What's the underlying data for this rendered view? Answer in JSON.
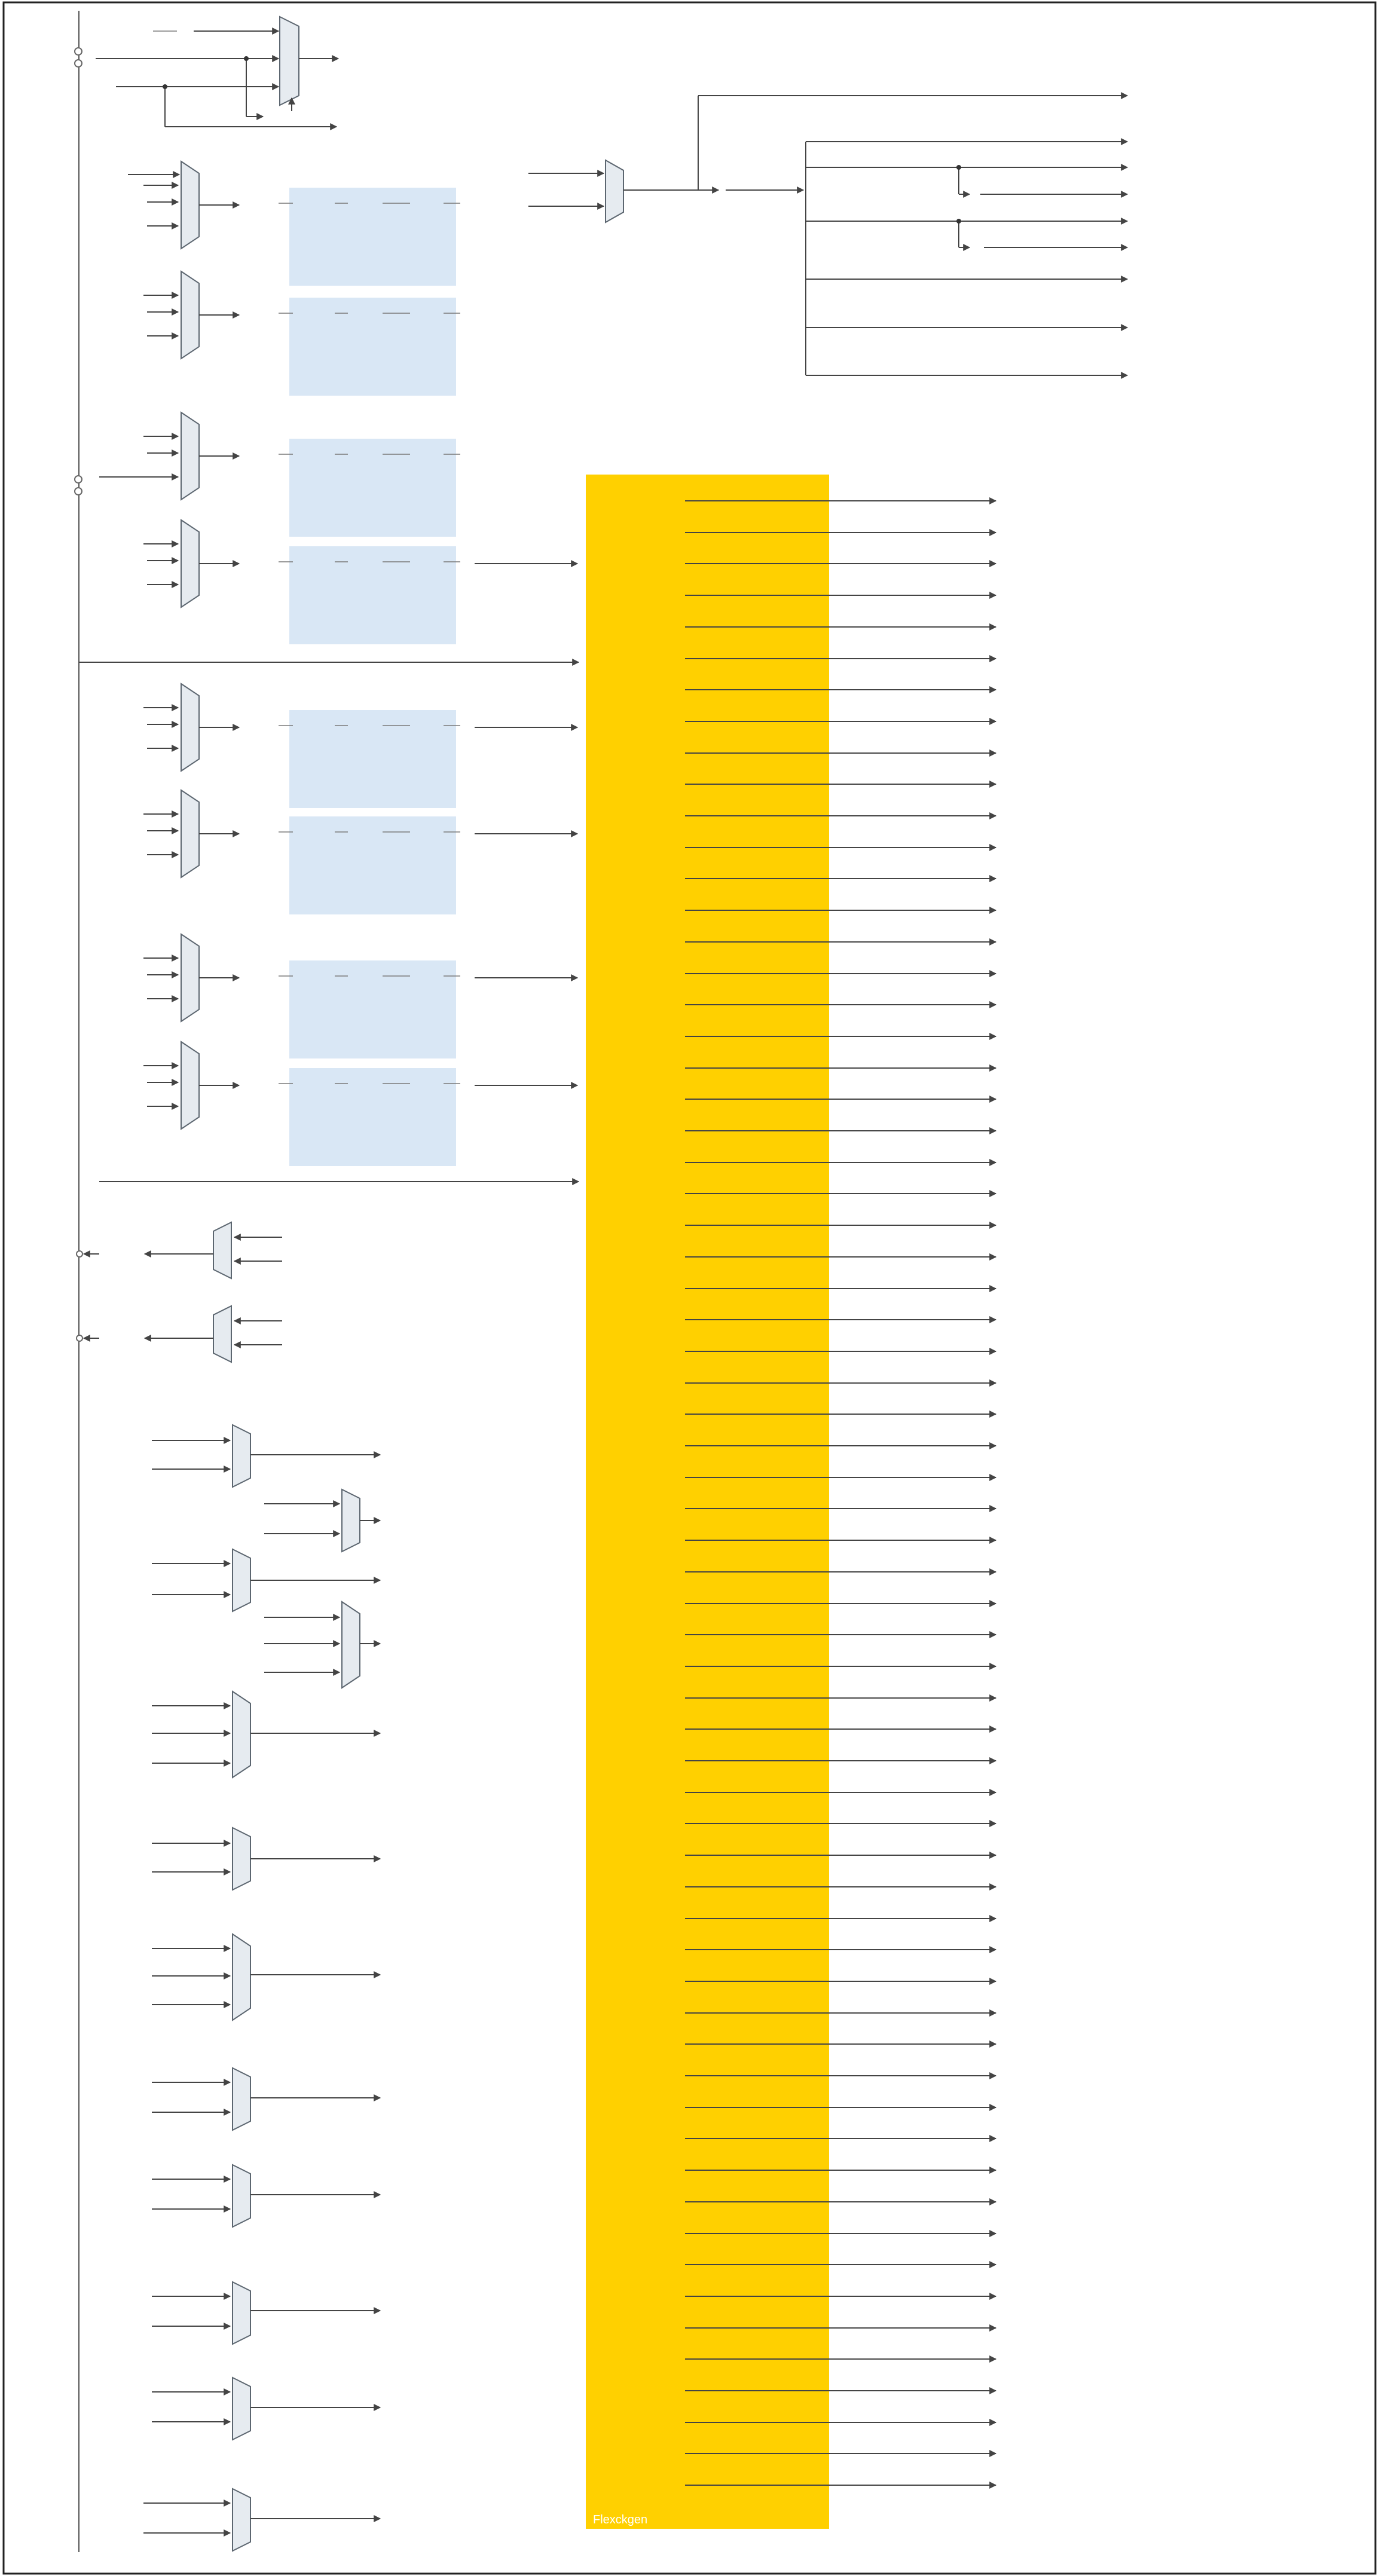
{
  "diagram": {
    "flexgen_label": "Flexckgen",
    "colors": {
      "flexgen": "#ffd000",
      "block": "#d9e7f5",
      "mux_fill": "#e6ebf0",
      "wire": "#444444",
      "frame": "#222222"
    },
    "counts": {
      "flexgen_outputs": 64,
      "clock_blocks": 8,
      "output_muxes": 15,
      "top_right_outputs": 8
    }
  }
}
